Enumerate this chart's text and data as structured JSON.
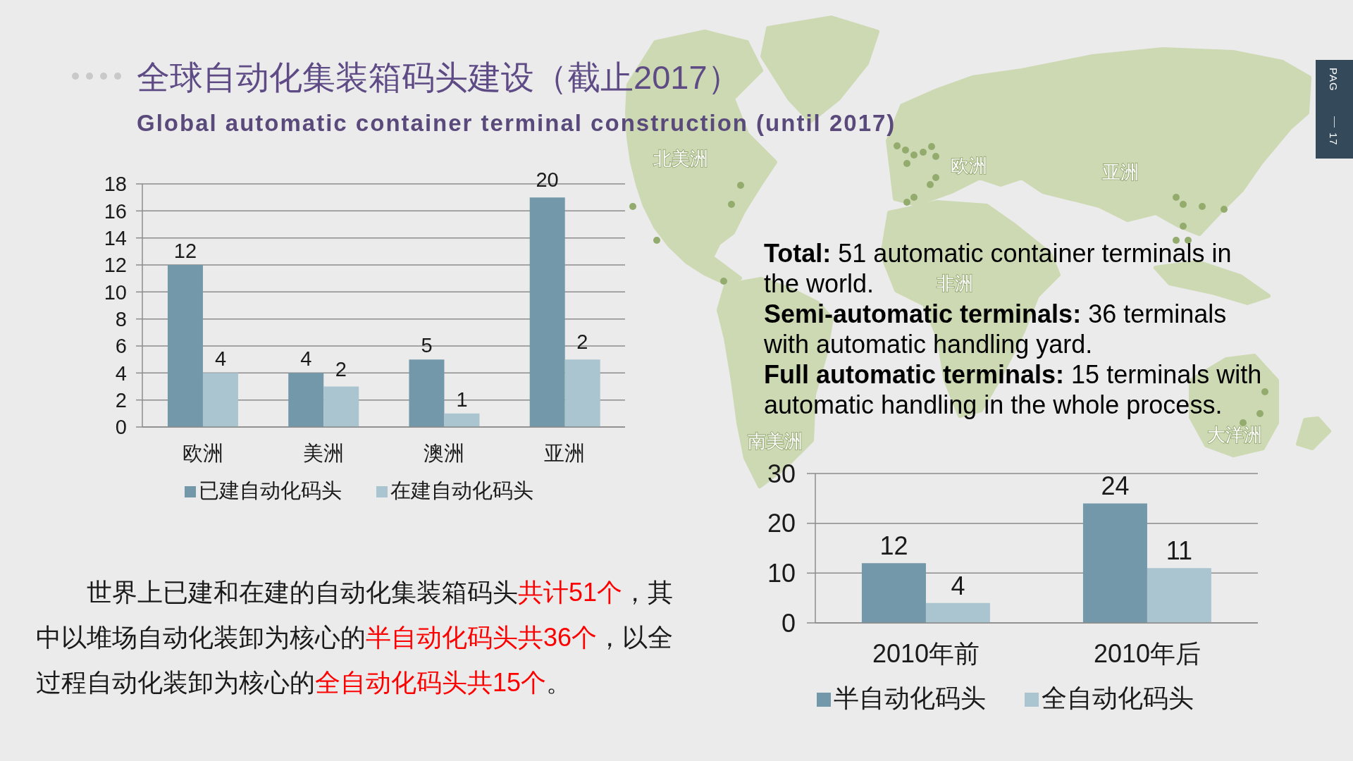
{
  "chart_data": [
    {
      "type": "bar",
      "title": "全球自动化集装箱码头建设（截止2017）",
      "subtitle": "Global automatic container terminal construction (until 2017)",
      "categories": [
        "欧洲",
        "美洲",
        "澳洲",
        "亚洲"
      ],
      "series": [
        {
          "name": "已建自动化码头",
          "color": "#7398a9",
          "values": [
            12,
            4,
            5,
            17
          ],
          "value_labels": [
            "12",
            "4",
            "5",
            null
          ]
        },
        {
          "name": "在建自动化码头",
          "color": "#abc5d0",
          "values": [
            4,
            3,
            1,
            5
          ],
          "value_labels": [
            "4",
            null,
            "1",
            null
          ]
        }
      ],
      "ylim": [
        0,
        18
      ],
      "yticks": [
        0,
        2,
        4,
        6,
        8,
        10,
        12,
        14,
        16,
        18
      ],
      "grid": "y",
      "legend": "bottom",
      "annotations": [
        {
          "text": "2",
          "x": "美洲",
          "y": 3
        },
        {
          "text": "20",
          "x": "亚洲",
          "y": 17
        },
        {
          "text": "2",
          "x": "亚洲",
          "y": 5
        }
      ]
    },
    {
      "type": "other",
      "annotations": [
        "北美洲",
        "欧洲",
        "亚洲",
        "非洲",
        "南美洲",
        "大洋洲"
      ]
    },
    {
      "type": "other",
      "annotations": [
        "Total:",
        "51 automatic container terminals in",
        "the world.",
        "Semi-automatic terminals:",
        "36 terminals",
        "with automatic handling yard.",
        "Full automatic terminals:",
        "15 terminals with",
        "automatic handling in the whole process."
      ]
    },
    {
      "type": "bar",
      "categories": [
        "2010年前",
        "2010年后"
      ],
      "series": [
        {
          "name": "半自动化码头",
          "color": "#7398a9",
          "values": [
            12,
            24
          ]
        },
        {
          "name": "全自动化码头",
          "color": "#abc5d0",
          "values": [
            4,
            11
          ]
        }
      ],
      "ylim": [
        0,
        30
      ],
      "yticks": [
        0,
        10,
        20,
        30
      ],
      "grid": "y",
      "legend": "bottom",
      "data_labels": true
    },
    {
      "type": "other",
      "annotations": [
        "世界上已建和在建的自动化集装箱码头",
        "共计51个",
        "，其",
        "中以堆场自动化装卸为核心的",
        "半自动化码头共36个",
        "，以全",
        "过程自动化装卸为核心的",
        "全自动化码头共15个",
        "。"
      ]
    },
    {
      "type": "other",
      "annotations": [
        "PAG",
        "17"
      ]
    }
  ]
}
